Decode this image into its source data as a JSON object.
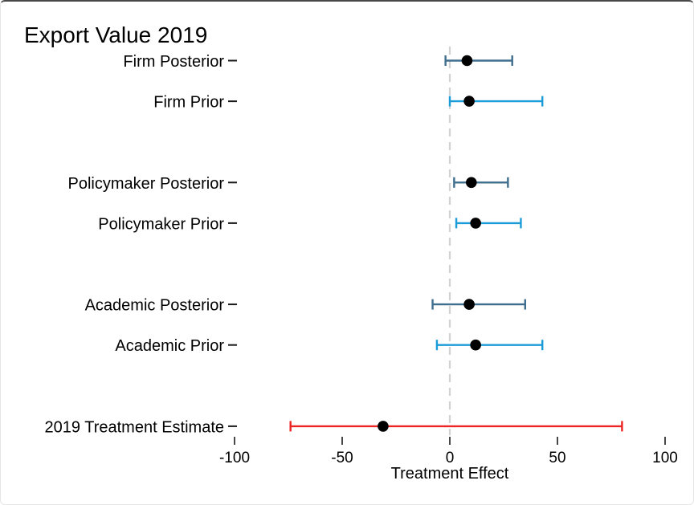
{
  "chart_data": {
    "type": "scatter",
    "variant": "forest-plot-with-error-bars",
    "title": "Export Value 2019",
    "xlabel": "Treatment Effect",
    "ylabel": "",
    "xlim": [
      -125,
      114
    ],
    "xticks": [
      -100,
      -50,
      0,
      50,
      100
    ],
    "xtick_labels": [
      "-100",
      "-50",
      "0",
      "50",
      "100"
    ],
    "grid": false,
    "legend": "none",
    "zero_line": {
      "x": 0,
      "style": "dashed",
      "color": "#d2d2d2"
    },
    "point_color": "#000000",
    "tick_color": "#1a1a1a",
    "row_slots": [
      1,
      2,
      4,
      5,
      7,
      8,
      10
    ],
    "rows": [
      {
        "label": "Firm Posterior",
        "estimate": 8,
        "ci_low": -2,
        "ci_high": 29,
        "ci_color": "#406e8e"
      },
      {
        "label": "Firm Prior",
        "estimate": 9,
        "ci_low": 0,
        "ci_high": 43,
        "ci_color": "#1b9cd8"
      },
      {
        "label": "Policymaker Posterior",
        "estimate": 10,
        "ci_low": 2,
        "ci_high": 27,
        "ci_color": "#406e8e"
      },
      {
        "label": "Policymaker Prior",
        "estimate": 12,
        "ci_low": 3,
        "ci_high": 33,
        "ci_color": "#1b9cd8"
      },
      {
        "label": "Academic Posterior",
        "estimate": 9,
        "ci_low": -8,
        "ci_high": 35,
        "ci_color": "#406e8e"
      },
      {
        "label": "Academic Prior",
        "estimate": 12,
        "ci_low": -6,
        "ci_high": 43,
        "ci_color": "#1b9cd8"
      },
      {
        "label": "2019 Treatment Estimate",
        "estimate": -31,
        "ci_low": -74,
        "ci_high": 80,
        "ci_color": "#ee2424"
      }
    ]
  }
}
